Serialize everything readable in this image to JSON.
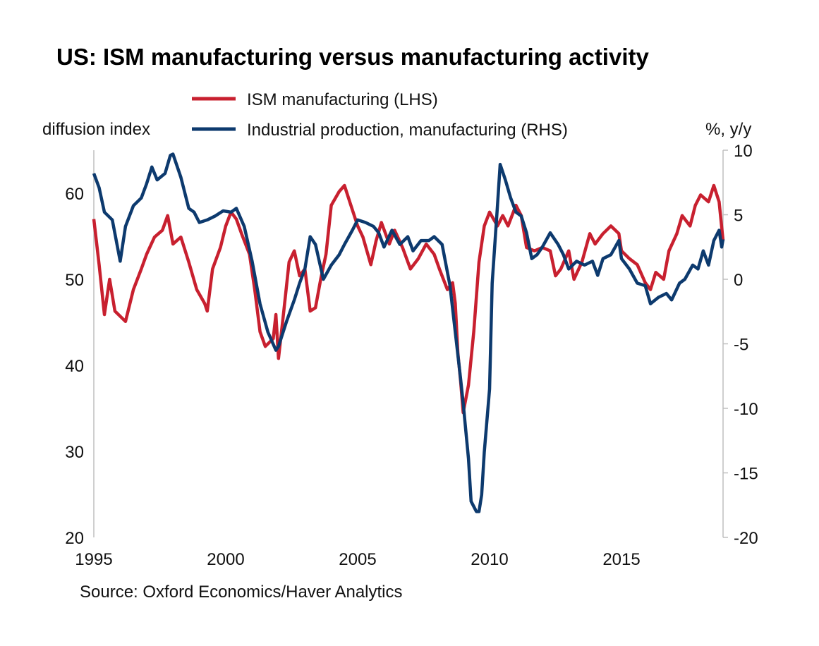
{
  "chart_data": {
    "type": "line",
    "title": "US: ISM manufacturing versus manufacturing activity",
    "left_axis_label": "diffusion index",
    "right_axis_label": "%, y/y",
    "source": "Source: Oxford Economics/Haver Analytics",
    "xlim": [
      1995,
      2018.85
    ],
    "x_ticks": [
      1995,
      2000,
      2005,
      2010,
      2015
    ],
    "x_tick_labels": [
      "1995",
      "2000",
      "2005",
      "2010",
      "2015"
    ],
    "ylim_left": [
      20,
      65
    ],
    "y_ticks_left": [
      20,
      30,
      40,
      50,
      60
    ],
    "y_tick_labels_left": [
      "20",
      "30",
      "40",
      "50",
      "60"
    ],
    "ylim_right": [
      -20,
      10
    ],
    "y_ticks_right": [
      -20,
      -15,
      -10,
      -5,
      0,
      5,
      10
    ],
    "y_tick_labels_right": [
      "-20",
      "-15",
      "-10",
      "-5",
      "0",
      "5",
      "10"
    ],
    "grid": false,
    "legend_placement": "top",
    "series": [
      {
        "name": "ISM manufacturing (LHS)",
        "axis": "left",
        "color": "#c8202f",
        "x": [
          1995.0,
          1995.2,
          1995.4,
          1995.6,
          1995.8,
          1996.2,
          1996.5,
          1996.8,
          1997.0,
          1997.3,
          1997.6,
          1997.8,
          1998.0,
          1998.3,
          1998.6,
          1998.9,
          1999.2,
          1999.3,
          1999.5,
          1999.8,
          2000.0,
          2000.2,
          2000.4,
          2000.6,
          2000.9,
          2001.1,
          2001.3,
          2001.5,
          2001.8,
          2001.9,
          2002.0,
          2002.2,
          2002.4,
          2002.6,
          2002.8,
          2003.0,
          2003.2,
          2003.4,
          2003.6,
          2003.8,
          2004.0,
          2004.3,
          2004.5,
          2004.7,
          2005.0,
          2005.2,
          2005.5,
          2005.7,
          2005.9,
          2006.2,
          2006.4,
          2006.7,
          2007.0,
          2007.3,
          2007.6,
          2007.9,
          2008.1,
          2008.4,
          2008.6,
          2008.7,
          2008.8,
          2008.9,
          2009.0,
          2009.2,
          2009.4,
          2009.6,
          2009.8,
          2010.0,
          2010.3,
          2010.5,
          2010.7,
          2011.0,
          2011.2,
          2011.4,
          2011.7,
          2012.0,
          2012.3,
          2012.5,
          2012.7,
          2013.0,
          2013.2,
          2013.5,
          2013.8,
          2014.0,
          2014.3,
          2014.6,
          2014.9,
          2015.0,
          2015.3,
          2015.6,
          2015.9,
          2016.1,
          2016.3,
          2016.6,
          2016.8,
          2017.1,
          2017.3,
          2017.6,
          2017.8,
          2018.0,
          2018.3,
          2018.5,
          2018.7,
          2018.85
        ],
        "values": [
          57.0,
          51.7,
          45.9,
          50.0,
          46.3,
          45.1,
          48.8,
          51.2,
          52.9,
          54.9,
          55.7,
          57.4,
          54.1,
          54.9,
          52.0,
          48.8,
          47.2,
          46.3,
          51.2,
          53.7,
          56.2,
          57.8,
          57.0,
          55.3,
          52.9,
          48.8,
          43.9,
          42.2,
          43.1,
          45.9,
          40.8,
          46.3,
          52.0,
          53.3,
          50.4,
          51.2,
          46.3,
          46.7,
          50.0,
          52.9,
          58.6,
          60.2,
          60.9,
          59.0,
          56.2,
          54.9,
          51.7,
          54.5,
          56.6,
          54.1,
          55.7,
          53.7,
          51.2,
          52.4,
          54.1,
          52.9,
          51.2,
          48.8,
          49.6,
          47.2,
          41.4,
          38.2,
          34.5,
          37.7,
          43.9,
          52.0,
          56.2,
          57.8,
          56.2,
          57.4,
          56.2,
          58.6,
          57.4,
          53.7,
          53.3,
          53.7,
          53.3,
          50.4,
          51.2,
          53.3,
          50.0,
          52.0,
          55.3,
          54.1,
          55.3,
          56.2,
          55.3,
          53.3,
          52.4,
          51.7,
          49.6,
          48.8,
          50.8,
          50.0,
          53.3,
          55.3,
          57.4,
          56.2,
          58.6,
          59.8,
          59.0,
          60.9,
          59.0,
          54.5
        ]
      },
      {
        "name": "Industrial production, manufacturing (RHS)",
        "axis": "right",
        "color": "#0d3a6e",
        "x": [
          1995.0,
          1995.2,
          1995.4,
          1995.7,
          1996.0,
          1996.2,
          1996.5,
          1996.8,
          1997.0,
          1997.2,
          1997.4,
          1997.7,
          1997.9,
          1998.0,
          1998.3,
          1998.6,
          1998.8,
          1999.0,
          1999.3,
          1999.6,
          1999.9,
          2000.2,
          2000.4,
          2000.7,
          2001.0,
          2001.3,
          2001.6,
          2001.9,
          2002.0,
          2002.3,
          2002.6,
          2002.8,
          2003.0,
          2003.2,
          2003.4,
          2003.7,
          2004.0,
          2004.3,
          2004.5,
          2004.8,
          2005.0,
          2005.3,
          2005.6,
          2005.8,
          2006.0,
          2006.3,
          2006.6,
          2006.9,
          2007.1,
          2007.4,
          2007.7,
          2007.9,
          2008.2,
          2008.5,
          2008.7,
          2008.9,
          2009.0,
          2009.2,
          2009.3,
          2009.5,
          2009.6,
          2009.7,
          2009.8,
          2010.0,
          2010.1,
          2010.3,
          2010.4,
          2010.6,
          2010.8,
          2011.0,
          2011.2,
          2011.4,
          2011.6,
          2011.8,
          2012.0,
          2012.3,
          2012.6,
          2012.8,
          2013.0,
          2013.3,
          2013.6,
          2013.9,
          2014.1,
          2014.3,
          2014.6,
          2014.9,
          2015.0,
          2015.3,
          2015.6,
          2015.9,
          2016.1,
          2016.4,
          2016.7,
          2016.9,
          2017.2,
          2017.4,
          2017.7,
          2017.9,
          2018.1,
          2018.3,
          2018.5,
          2018.7,
          2018.8,
          2018.85
        ],
        "values": [
          8.2,
          7.1,
          5.2,
          4.6,
          1.4,
          4.1,
          5.7,
          6.3,
          7.4,
          8.7,
          7.7,
          8.2,
          9.6,
          9.7,
          7.9,
          5.5,
          5.2,
          4.4,
          4.6,
          4.9,
          5.3,
          5.2,
          5.5,
          4.1,
          1.4,
          -1.9,
          -4.1,
          -5.5,
          -5.2,
          -3.3,
          -1.6,
          -0.3,
          0.8,
          3.3,
          2.7,
          0.0,
          1.1,
          1.9,
          2.7,
          3.8,
          4.6,
          4.4,
          4.1,
          3.6,
          2.5,
          3.8,
          2.7,
          3.3,
          2.2,
          3.0,
          3.0,
          3.3,
          2.7,
          -0.5,
          -4.1,
          -7.7,
          -9.6,
          -13.9,
          -17.2,
          -18.0,
          -18.0,
          -16.7,
          -13.4,
          -8.5,
          -0.3,
          5.7,
          8.9,
          7.7,
          6.3,
          5.2,
          4.9,
          3.6,
          1.6,
          1.9,
          2.5,
          3.6,
          2.7,
          1.9,
          0.8,
          1.4,
          1.1,
          1.4,
          0.3,
          1.6,
          1.9,
          3.0,
          1.6,
          0.8,
          -0.3,
          -0.5,
          -1.9,
          -1.4,
          -1.1,
          -1.6,
          -0.3,
          0.0,
          1.1,
          0.8,
          2.2,
          1.1,
          3.0,
          3.8,
          2.5,
          3.1
        ]
      }
    ]
  }
}
